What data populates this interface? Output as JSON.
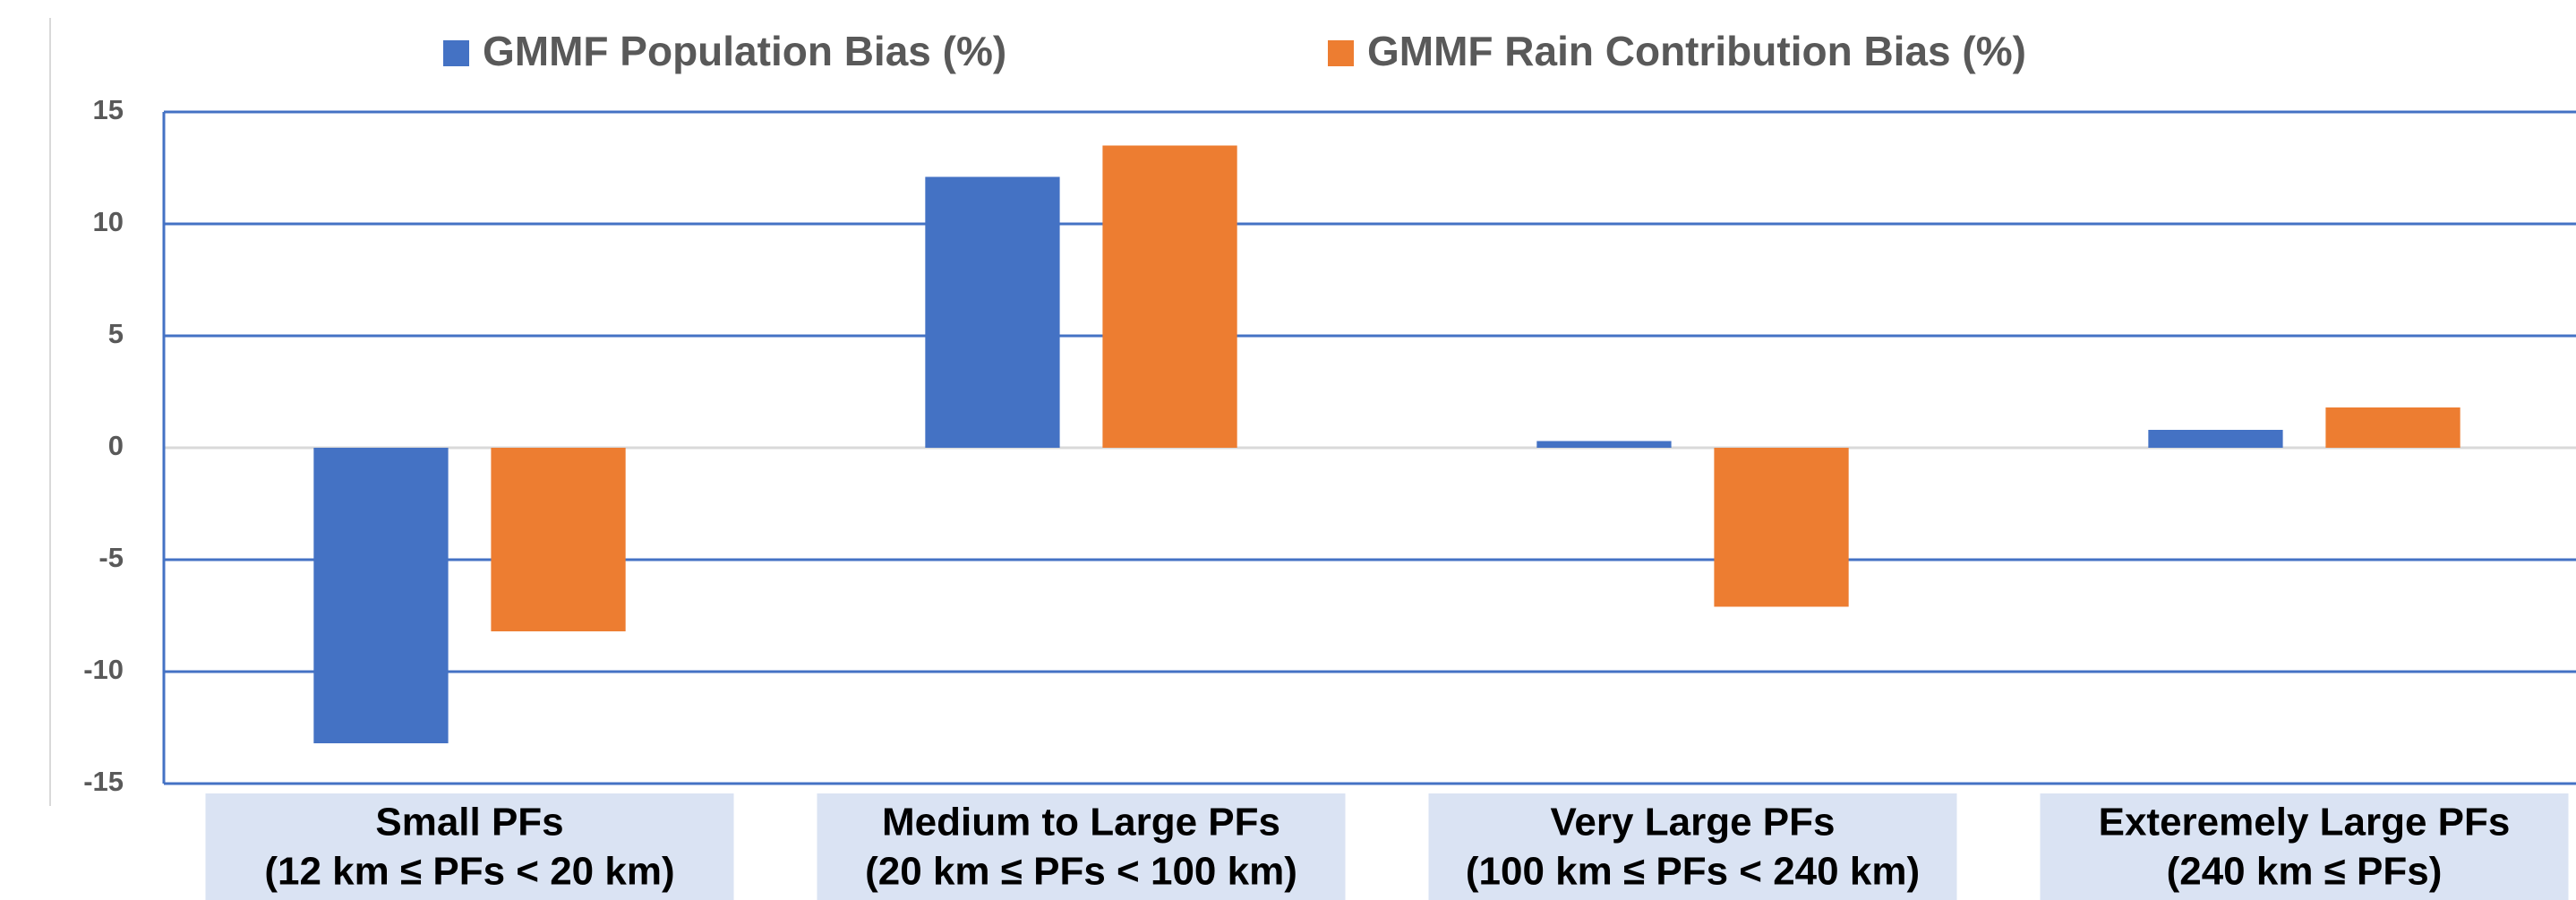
{
  "chart_data": {
    "type": "bar",
    "categories": [
      "Small PFs",
      "Medium to Large PFs",
      "Very Large PFs",
      "Exteremely Large PFs"
    ],
    "category_ranges": [
      "(12 km ≤ PFs < 20 km)",
      "(20 km ≤ PFs < 100 km)",
      "(100 km ≤ PFs < 240 km)",
      "(240 km ≤ PFs)"
    ],
    "series": [
      {
        "name": "GMMF Population Bias (%)",
        "color": "#4472c4",
        "values": [
          -13.2,
          12.1,
          0.3,
          0.8
        ]
      },
      {
        "name": "GMMF Rain Contribution Bias (%)",
        "color": "#ed7d31",
        "values": [
          -8.2,
          13.5,
          -7.1,
          1.8
        ]
      }
    ],
    "ylim": [
      -15,
      15
    ],
    "yticks": [
      -15,
      -10,
      -5,
      0,
      5,
      10,
      15
    ],
    "grid": true,
    "legend": "top"
  }
}
